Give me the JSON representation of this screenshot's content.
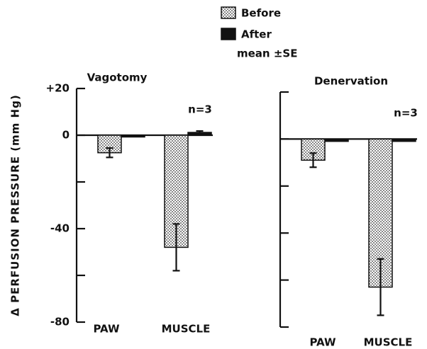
{
  "chart_data": [
    {
      "type": "bar",
      "title": "Vagotomy",
      "y_label": "Δ PERFUSION PRESSURE (mm Hg)",
      "annotation": "n=3",
      "legend_note": "mean ±SE",
      "categories": [
        "PAW",
        "MUSCLE"
      ],
      "series": [
        {
          "name": "Before",
          "color": "dotted",
          "values": [
            -7.5,
            -48
          ],
          "errors": [
            2,
            10
          ]
        },
        {
          "name": "After",
          "color": "#111111",
          "values": [
            -0.5,
            1.2
          ],
          "errors": [
            null,
            0.6
          ]
        }
      ],
      "ylim": [
        -80,
        20
      ],
      "yticks": [
        {
          "value": 20,
          "label": "+20"
        },
        0,
        -40,
        -80
      ],
      "minor_yticks": [
        -20,
        -60
      ]
    },
    {
      "type": "bar",
      "title": "Denervation",
      "annotation": "n=3",
      "categories": [
        "PAW",
        "MUSCLE"
      ],
      "series": [
        {
          "name": "Before",
          "color": "dotted",
          "values": [
            -9,
            -63
          ],
          "errors": [
            3,
            12
          ]
        },
        {
          "name": "After",
          "color": "#111111",
          "values": [
            -1,
            -1
          ],
          "errors": [
            null,
            null
          ]
        }
      ],
      "ylim": [
        -80,
        20
      ],
      "yticks": [],
      "minor_yticks": [
        20,
        0,
        -20,
        -40,
        -60,
        -80
      ]
    }
  ]
}
